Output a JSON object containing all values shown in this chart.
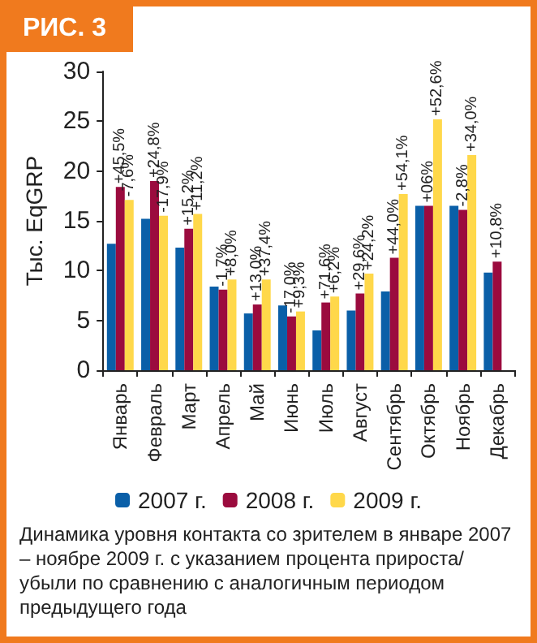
{
  "chart_data": {
    "type": "bar",
    "title": "РИС. 3",
    "ylabel": "Тыс. EqGRP",
    "categories": [
      "Январь",
      "Февраль",
      "Март",
      "Апрель",
      "Май",
      "Июнь",
      "Июль",
      "Август",
      "Сентябрь",
      "Октябрь",
      "Ноябрь",
      "Декабрь"
    ],
    "series": [
      {
        "name": "2007 г.",
        "color": "#0a5fa8",
        "values": [
          12.7,
          15.2,
          12.3,
          8.4,
          5.7,
          6.5,
          4.0,
          6.0,
          7.9,
          16.5,
          16.5,
          9.8
        ]
      },
      {
        "name": "2008 г.",
        "color": "#9b0b3e",
        "values": [
          18.4,
          19.0,
          14.2,
          8.1,
          6.6,
          5.4,
          6.8,
          7.7,
          11.3,
          16.5,
          16.1,
          10.9
        ]
      },
      {
        "name": "2009 г.",
        "color": "#ffd84a",
        "values": [
          17.1,
          15.5,
          15.7,
          9.1,
          9.1,
          5.9,
          7.4,
          9.7,
          17.7,
          25.2,
          21.6,
          null
        ]
      }
    ],
    "ylim": [
      0,
      30
    ],
    "yticks": [
      0,
      5,
      10,
      15,
      20,
      25,
      30
    ],
    "grid": false,
    "legend": "bottom",
    "annotations": [
      {
        "text": "+45,5%",
        "x": "Январь",
        "y": 18.4
      },
      {
        "text": "-7,6%",
        "x": "Январь",
        "y": 17.1
      },
      {
        "text": "+24,8%",
        "x": "Февраль",
        "y": 19.0
      },
      {
        "text": "-17,9%",
        "x": "Февраль",
        "y": 15.5
      },
      {
        "text": "+15,2%",
        "x": "Март",
        "y": 14.2
      },
      {
        "text": "+11,2%",
        "x": "Март",
        "y": 15.7
      },
      {
        "text": "-1,7%",
        "x": "Апрель",
        "y": 8.1
      },
      {
        "text": "+8,0%",
        "x": "Апрель",
        "y": 9.1
      },
      {
        "text": "+13,0%",
        "x": "Май",
        "y": 6.6
      },
      {
        "text": "+37,4%",
        "x": "Май",
        "y": 9.1
      },
      {
        "text": "-17,0%",
        "x": "Июнь",
        "y": 5.4
      },
      {
        "text": "+9,3%",
        "x": "Июнь",
        "y": 5.9
      },
      {
        "text": "+71,6%",
        "x": "Июль",
        "y": 6.8
      },
      {
        "text": "+6,2%",
        "x": "Июль",
        "y": 7.4
      },
      {
        "text": "+29,6%",
        "x": "Август",
        "y": 7.7
      },
      {
        "text": "+24,2%",
        "x": "Август",
        "y": 9.7
      },
      {
        "text": "+44,0%",
        "x": "Сентябрь",
        "y": 11.3
      },
      {
        "text": "+54,1%",
        "x": "Сентябрь",
        "y": 17.7
      },
      {
        "text": "+06%",
        "x": "Октябрь",
        "y": 16.5
      },
      {
        "text": "+52,6%",
        "x": "Октябрь",
        "y": 25.2
      },
      {
        "text": "-2,8%",
        "x": "Ноябрь",
        "y": 16.1
      },
      {
        "text": "+34,0%",
        "x": "Ноябрь",
        "y": 21.6
      },
      {
        "text": "+10,8%",
        "x": "Декабрь",
        "y": 10.9
      },
      "Динамика уровня контакта со зрителем в январе 2007 – ноябре 2009 г. с указанием процента прироста/убыли по сравнению с аналогичным периодом предыдущего года"
    ]
  }
}
